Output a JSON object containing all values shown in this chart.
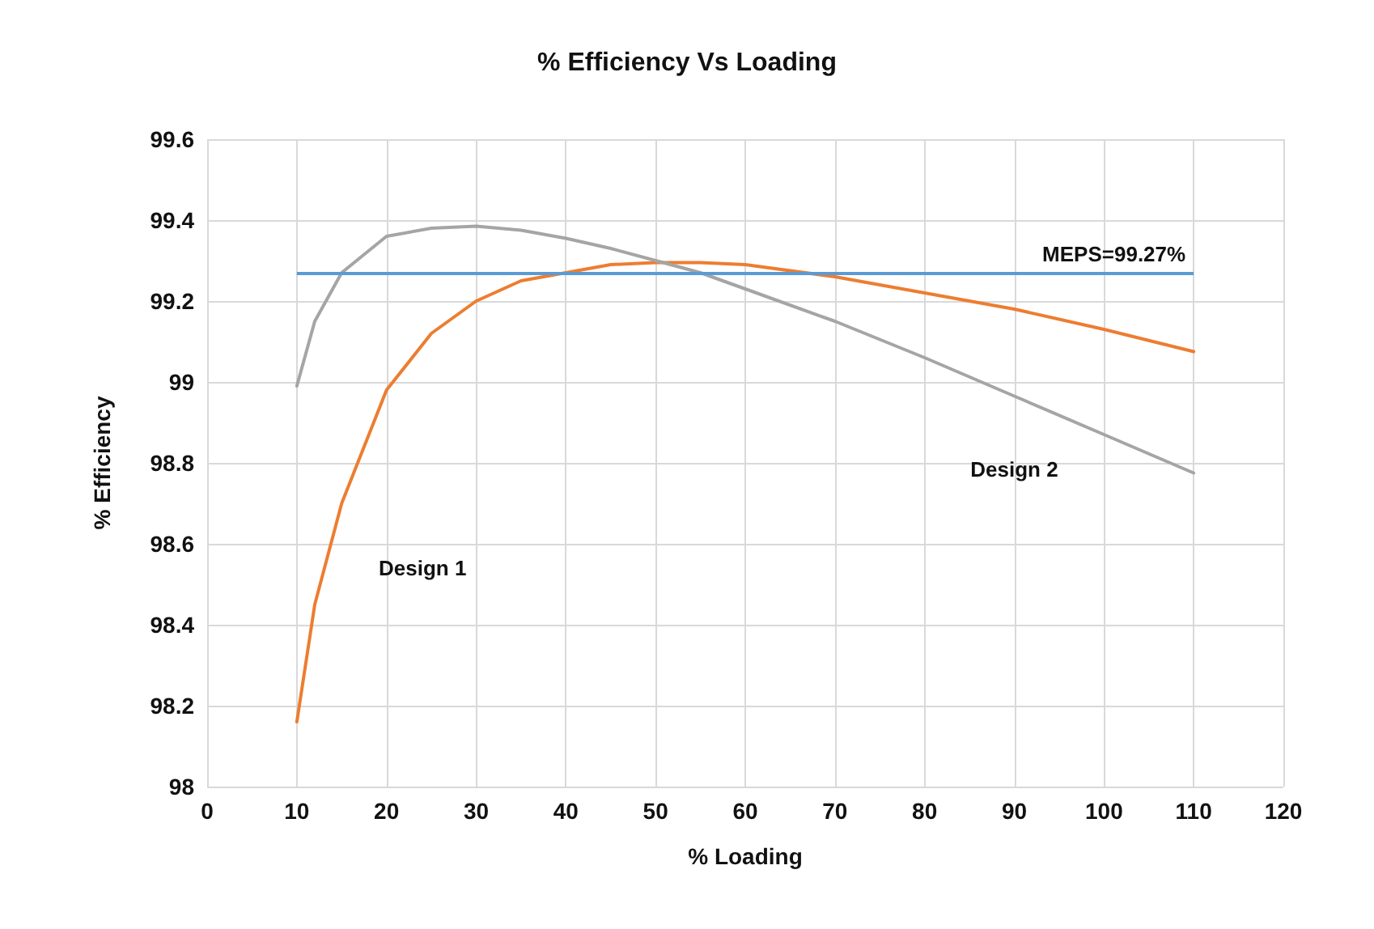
{
  "chart_data": {
    "type": "line",
    "title": "% Efficiency Vs Loading",
    "xlabel": "% Loading",
    "ylabel": "% Efficiency",
    "x": [
      10,
      12,
      15,
      20,
      25,
      30,
      35,
      40,
      45,
      50,
      55,
      60,
      70,
      80,
      90,
      100,
      110
    ],
    "series": [
      {
        "name": "Design 1",
        "color": "#ed7d31",
        "values": [
          98.16,
          98.45,
          98.7,
          98.98,
          99.12,
          99.2,
          99.25,
          99.27,
          99.29,
          99.295,
          99.295,
          99.29,
          99.26,
          99.22,
          99.18,
          99.13,
          99.075
        ]
      },
      {
        "name": "Design 2",
        "color": "#a5a5a5",
        "values": [
          98.99,
          99.15,
          99.27,
          99.36,
          99.38,
          99.385,
          99.375,
          99.355,
          99.33,
          99.3,
          99.27,
          99.23,
          99.15,
          99.06,
          98.965,
          98.87,
          98.775
        ]
      }
    ],
    "xlim": [
      0,
      120
    ],
    "xticks": [
      0,
      10,
      20,
      30,
      40,
      50,
      60,
      70,
      80,
      90,
      100,
      110,
      120
    ],
    "ylim": [
      98,
      99.6
    ],
    "yticks": [
      98,
      {
        "value": 98.2,
        "label": "98.2"
      },
      {
        "value": 98.4,
        "label": "98.4"
      },
      {
        "value": 98.6,
        "label": "98.6"
      },
      {
        "value": 98.8,
        "label": "98.8"
      },
      99,
      {
        "value": 99.2,
        "label": "99.2"
      },
      {
        "value": 99.4,
        "label": "99.4"
      },
      {
        "value": 99.6,
        "label": "99.6"
      }
    ],
    "ref_lines": [
      {
        "axis": "y",
        "value": 99.27,
        "label": "MEPS=99.27%",
        "color": "#5b9bd5"
      }
    ],
    "grid": true,
    "legend": false,
    "marker": "none",
    "line_style": "solid"
  }
}
